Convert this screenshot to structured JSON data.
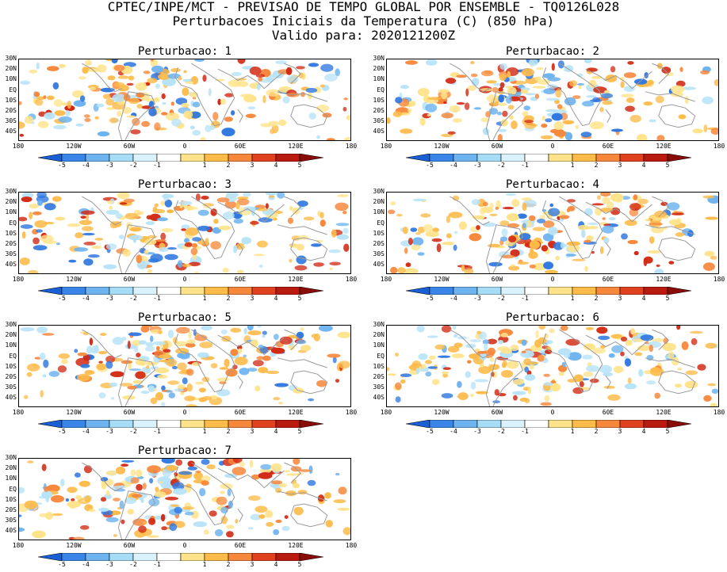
{
  "header": {
    "line1": "CPTEC/INPE/MCT - PREVISAO DE TEMPO GLOBAL POR ENSEMBLE - TQ0126L028",
    "line2": "Perturbacoes Iniciais da Temperatura (C) (850 hPa)",
    "line3": "Valido para: 2020121200Z"
  },
  "panels": [
    {
      "title": "Perturbacao: 1"
    },
    {
      "title": "Perturbacao: 2"
    },
    {
      "title": "Perturbacao: 3"
    },
    {
      "title": "Perturbacao: 4"
    },
    {
      "title": "Perturbacao: 5"
    },
    {
      "title": "Perturbacao: 6"
    },
    {
      "title": "Perturbacao: 7"
    }
  ],
  "axes": {
    "lat_labels": [
      "30N",
      "20N",
      "10N",
      "EQ",
      "10S",
      "20S",
      "30S",
      "40S"
    ],
    "lon_labels": [
      "180",
      "120W",
      "60W",
      "0",
      "60E",
      "120E",
      "180"
    ]
  },
  "colorbar": {
    "labels": [
      "-5",
      "-4",
      "-3",
      "-2",
      "-1",
      "1",
      "2",
      "3",
      "4",
      "5"
    ],
    "colors": [
      "#1a5fd6",
      "#3a86e8",
      "#6db3f0",
      "#a6dcf7",
      "#d9f2fb",
      "#ffffff",
      "#ffe38a",
      "#fdbb4a",
      "#f7873a",
      "#e0421f",
      "#b81a10",
      "#8a0c08"
    ]
  },
  "colors": {
    "coastline": "#9a9a9a",
    "warm_light": "#ffe38a",
    "warm_mid": "#fdbb4a",
    "warm_strong": "#f7873a",
    "warm_max": "#d22a14",
    "cool_light": "#b7e3f8",
    "cool_mid": "#6db3f0",
    "cool_strong": "#2f77e0"
  }
}
